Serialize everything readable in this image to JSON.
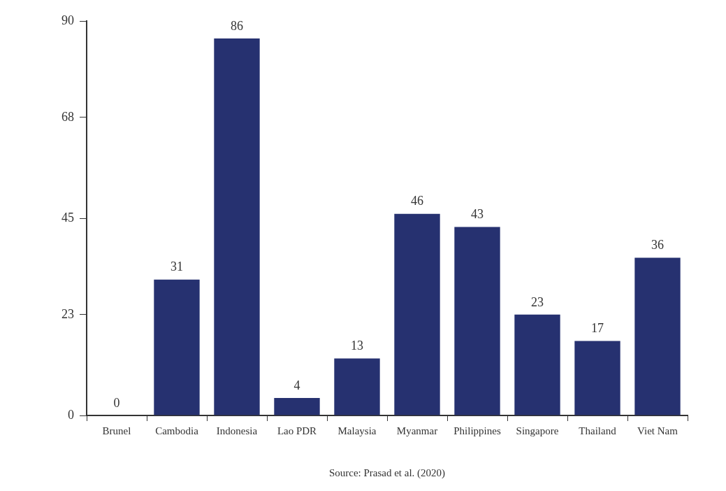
{
  "chart_data": {
    "type": "bar",
    "categories": [
      "Brunel",
      "Cambodia",
      "Indonesia",
      "Lao PDR",
      "Malaysia",
      "Myanmar",
      "Philippines",
      "Singapore",
      "Thailand",
      "Viet Nam"
    ],
    "values": [
      0,
      31,
      86,
      4,
      13,
      46,
      43,
      23,
      17,
      36
    ],
    "color": "#263170",
    "ylim": [
      0,
      90
    ],
    "yticks": [
      0,
      23,
      45,
      68,
      90
    ],
    "grid": false,
    "legend": false,
    "data_labels": true,
    "annotations": [
      "Source: Prasad et al. (2020)"
    ]
  }
}
